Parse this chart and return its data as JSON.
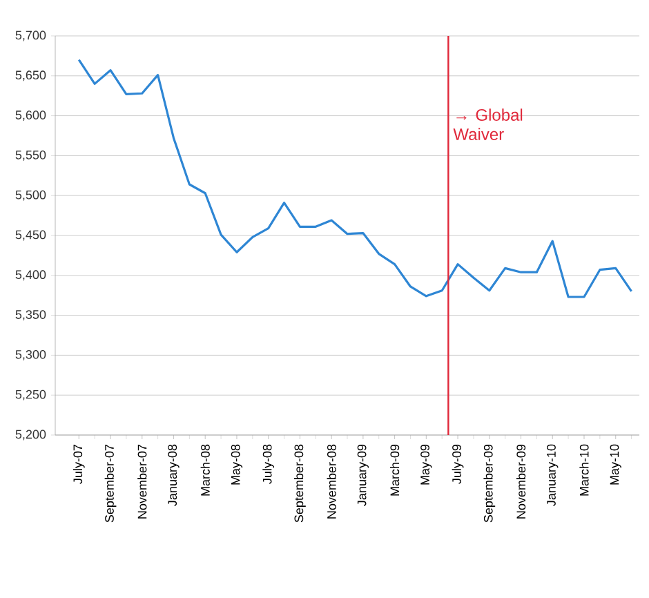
{
  "chart_data": {
    "type": "line",
    "categories": [
      "July-07",
      null,
      "September-07",
      null,
      "November-07",
      null,
      "January-08",
      null,
      "March-08",
      null,
      "May-08",
      null,
      "July-08",
      null,
      "September-08",
      null,
      "November-08",
      null,
      "January-09",
      null,
      "March-09",
      null,
      "May-09",
      null,
      "July-09",
      null,
      "September-09",
      null,
      "November-09",
      null,
      "January-10",
      null,
      "March-10",
      null,
      "May-10",
      null
    ],
    "series": [
      {
        "color": "#2e86d4",
        "values": [
          5670,
          5640,
          5657,
          5627,
          5628,
          5651,
          5572,
          5514,
          5503,
          5451,
          5429,
          5448,
          5459,
          5491,
          5461,
          5461,
          5469,
          5452,
          5453,
          5427,
          5414,
          5386,
          5374,
          5381,
          5414,
          5397,
          5381,
          5409,
          5404,
          5404,
          5443,
          5373,
          5373,
          5407,
          5409,
          5380
        ]
      }
    ],
    "ylim": [
      5200,
      5700
    ],
    "yticks": [
      {
        "value": 5200,
        "label": "5,200"
      },
      {
        "value": 5250,
        "label": "5,250"
      },
      {
        "value": 5300,
        "label": "5,300"
      },
      {
        "value": 5350,
        "label": "5,350"
      },
      {
        "value": 5400,
        "label": "5,400"
      },
      {
        "value": 5450,
        "label": "5,450"
      },
      {
        "value": 5500,
        "label": "5,500"
      },
      {
        "value": 5550,
        "label": "5,550"
      },
      {
        "value": 5600,
        "label": "5,600"
      },
      {
        "value": 5650,
        "label": "5,650"
      },
      {
        "value": 5700,
        "label": "5,700"
      }
    ],
    "grid": "y",
    "marker": "none",
    "line_style": "solid",
    "annotations": [
      "→ Global Waiver"
    ]
  }
}
